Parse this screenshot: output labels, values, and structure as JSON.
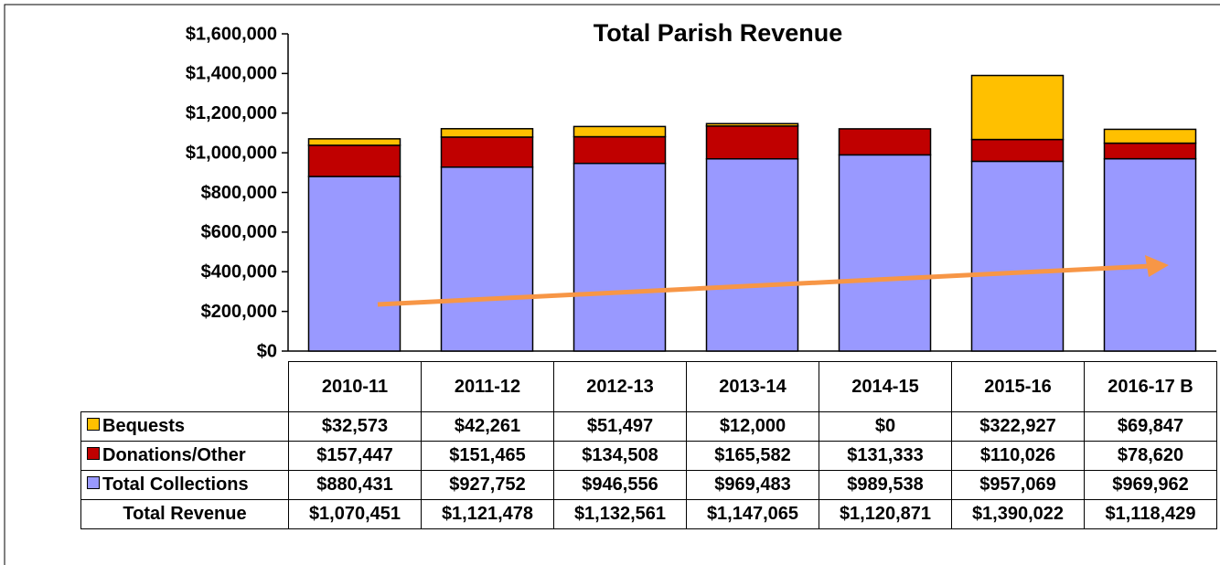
{
  "chart_data": {
    "type": "stacked_bar",
    "title": "Total Parish Revenue",
    "categories": [
      "2010-11",
      "2011-12",
      "2012-13",
      "2013-14",
      "2014-15",
      "2015-16",
      "2016-17 B"
    ],
    "series": [
      {
        "name": "Bequests",
        "color": "#ffc000",
        "values": [
          32573,
          42261,
          51497,
          12000,
          0,
          322927,
          69847
        ],
        "value_labels": [
          "$32,573",
          "$42,261",
          "$51,497",
          "$12,000",
          "$0",
          "$322,927",
          "$69,847"
        ]
      },
      {
        "name": "Donations/Other",
        "color": "#c00000",
        "values": [
          157447,
          151465,
          134508,
          165582,
          131333,
          110026,
          78620
        ],
        "value_labels": [
          "$157,447",
          "$151,465",
          "$134,508",
          "$165,582",
          "$131,333",
          "$110,026",
          "$78,620"
        ]
      },
      {
        "name": "Total Collections",
        "color": "#9999ff",
        "values": [
          880431,
          927752,
          946556,
          969483,
          989538,
          957069,
          969962
        ],
        "value_labels": [
          "$880,431",
          "$927,752",
          "$946,556",
          "$969,483",
          "$989,538",
          "$957,069",
          "$969,962"
        ]
      }
    ],
    "total_row": {
      "name": "Total Revenue",
      "values": [
        1070451,
        1121478,
        1132561,
        1147065,
        1120871,
        1390022,
        1118429
      ],
      "value_labels": [
        "$1,070,451",
        "$1,121,478",
        "$1,132,561",
        "$1,147,065",
        "$1,120,871",
        "$1,390,022",
        "$1,118,429"
      ]
    },
    "ylim": [
      0,
      1600000
    ],
    "yticks": [
      {
        "value": 0,
        "label": "$0"
      },
      {
        "value": 200000,
        "label": "$200,000"
      },
      {
        "value": 400000,
        "label": "$400,000"
      },
      {
        "value": 600000,
        "label": "$600,000"
      },
      {
        "value": 800000,
        "label": "$800,000"
      },
      {
        "value": 1000000,
        "label": "$1,000,000"
      },
      {
        "value": 1200000,
        "label": "$1,200,000"
      },
      {
        "value": 1400000,
        "label": "$1,400,000"
      },
      {
        "value": 1600000,
        "label": "$1,600,000"
      }
    ]
  }
}
